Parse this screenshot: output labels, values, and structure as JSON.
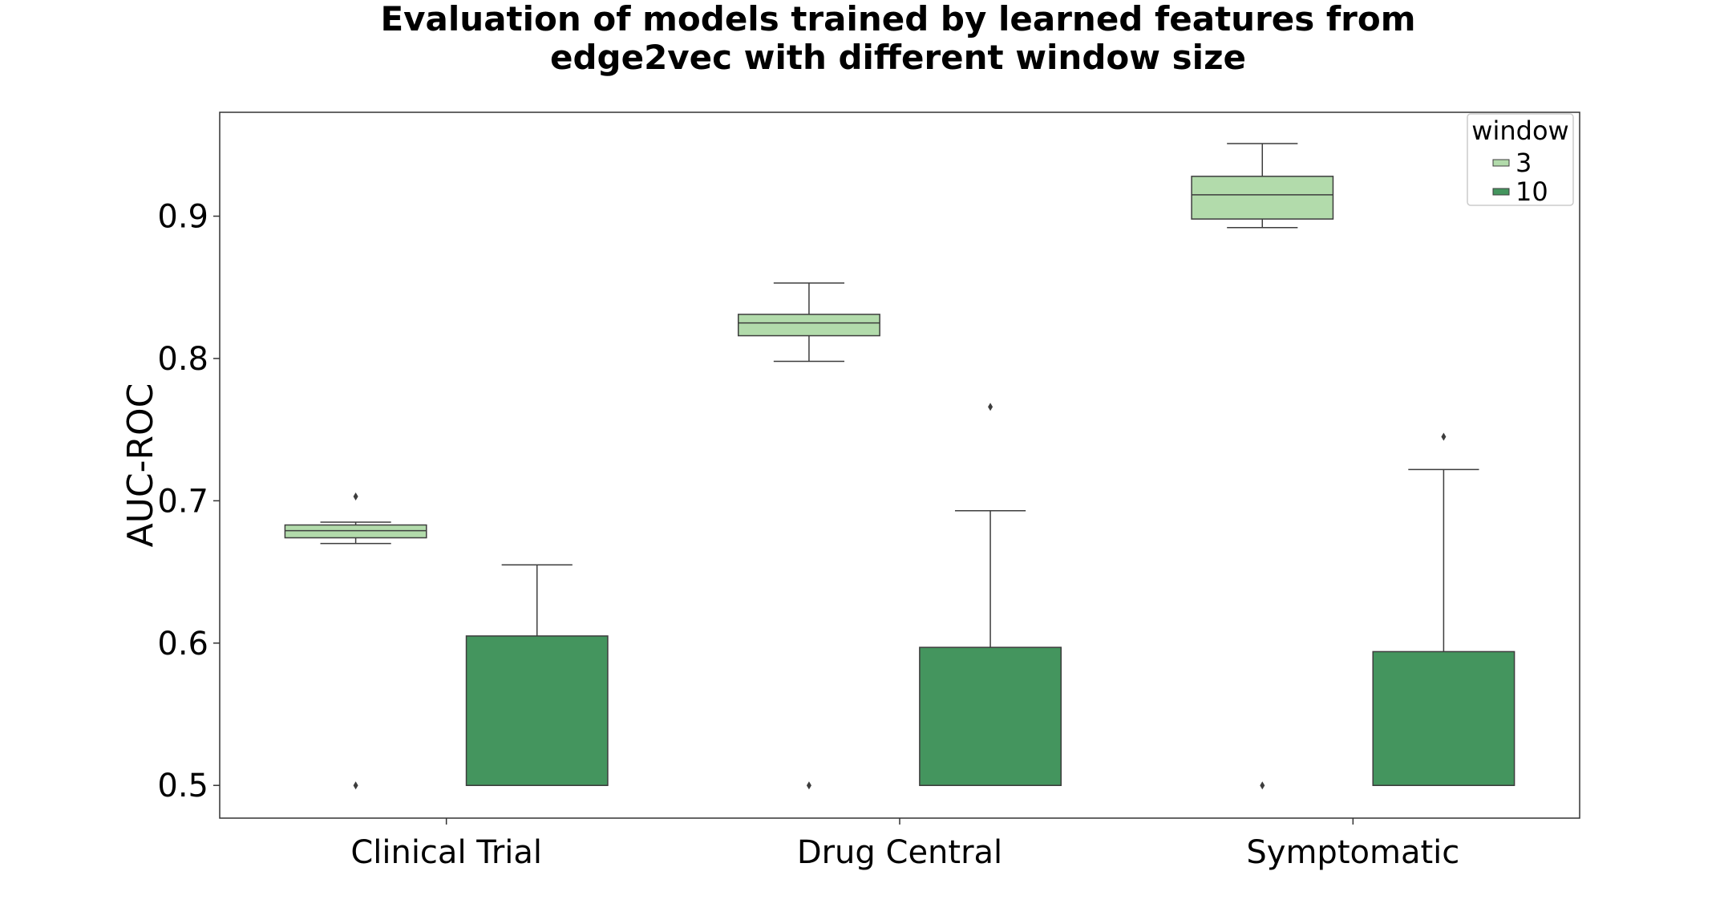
{
  "chart_data": {
    "type": "box",
    "title": "Evaluation of models trained by learned features from\nedge2vec with different window size",
    "xlabel": "",
    "ylabel": "AUC-ROC",
    "ylim": [
      0.477,
      0.973
    ],
    "yticks": [
      "0.5",
      "0.6",
      "0.7",
      "0.8",
      "0.9"
    ],
    "categories": [
      "Clinical Trial",
      "Drug Central",
      "Symptomatic"
    ],
    "grid": false,
    "legend": {
      "title": "window",
      "placement": "top-right"
    },
    "series": [
      {
        "name": "3",
        "color": "#b2dbab",
        "boxes": [
          {
            "whisker_low": 0.67,
            "q1": 0.674,
            "median": 0.679,
            "q3": 0.683,
            "whisker_high": 0.685,
            "outliers": [
              0.703,
              0.5
            ]
          },
          {
            "whisker_low": 0.798,
            "q1": 0.816,
            "median": 0.825,
            "q3": 0.831,
            "whisker_high": 0.853,
            "outliers": [
              0.5
            ]
          },
          {
            "whisker_low": 0.892,
            "q1": 0.898,
            "median": 0.915,
            "q3": 0.928,
            "whisker_high": 0.951,
            "outliers": [
              0.5
            ]
          }
        ]
      },
      {
        "name": "10",
        "color": "#44955e",
        "boxes": [
          {
            "whisker_low": 0.5,
            "q1": 0.5,
            "median": 0.5,
            "q3": 0.605,
            "whisker_high": 0.655,
            "outliers": []
          },
          {
            "whisker_low": 0.5,
            "q1": 0.5,
            "median": 0.5,
            "q3": 0.597,
            "whisker_high": 0.693,
            "outliers": [
              0.766
            ]
          },
          {
            "whisker_low": 0.5,
            "q1": 0.5,
            "median": 0.5,
            "q3": 0.594,
            "whisker_high": 0.722,
            "outliers": [
              0.745
            ]
          }
        ]
      }
    ]
  }
}
